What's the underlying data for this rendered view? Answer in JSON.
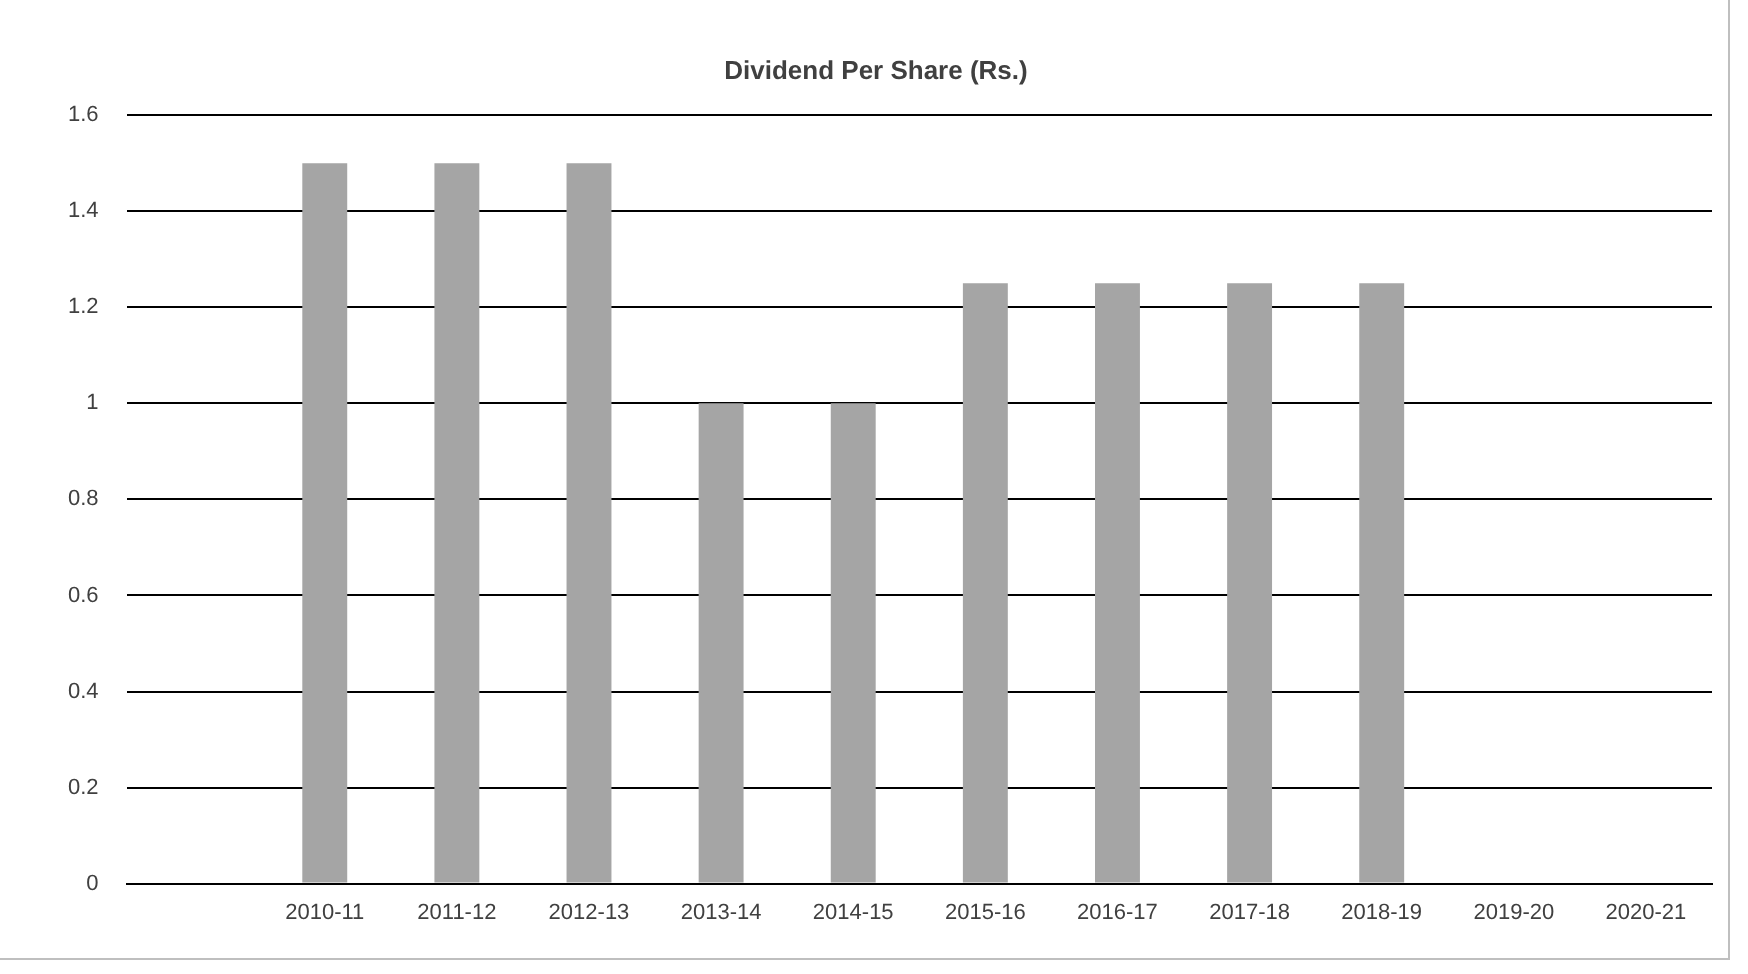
{
  "chart_data": {
    "type": "bar",
    "title": "Dividend Per Share (Rs.)",
    "categories": [
      null,
      "2010-11",
      "2011-12",
      "2012-13",
      "2013-14",
      "2014-15",
      "2015-16",
      "2016-17",
      "2017-18",
      "2018-19",
      "2019-20",
      "2020-21"
    ],
    "values": [
      null,
      1.5,
      1.5,
      1.5,
      1,
      1,
      1.25,
      1.25,
      1.25,
      1.25,
      null,
      null
    ],
    "color": "#a5a5a5",
    "ylim": [
      0,
      1.6
    ],
    "yticks": [
      0,
      0.2,
      0.4,
      0.6,
      0.8,
      1,
      1.2,
      1.4,
      1.6
    ],
    "grid": "y",
    "legend": false
  }
}
